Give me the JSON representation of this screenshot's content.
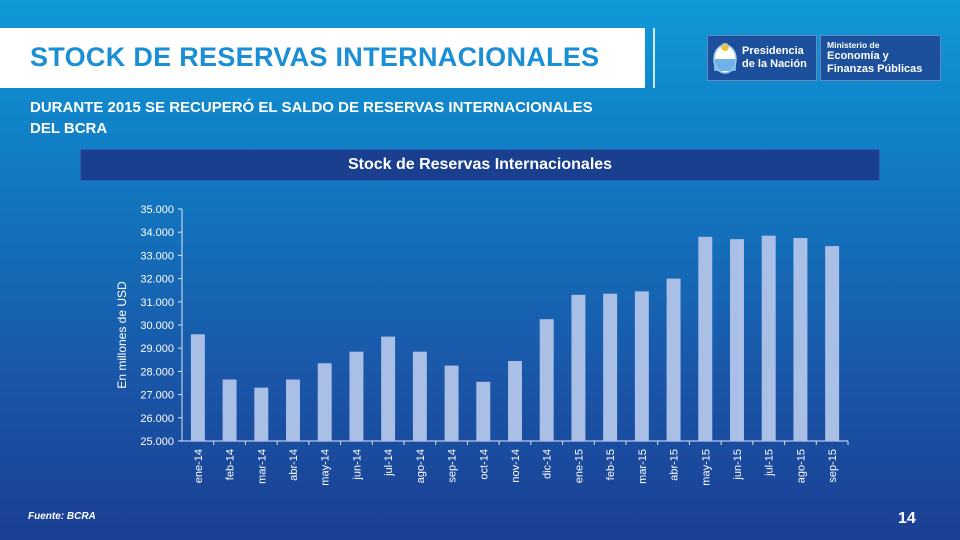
{
  "slide": {
    "title": "STOCK DE RESERVAS  INTERNACIONALES",
    "subtitle_line1": "DURANTE 2015 SE RECUPERÓ EL SALDO DE RESERVAS INTERNACIONALES",
    "subtitle_line2": "DEL BCRA",
    "source": "Fuente:  BCRA",
    "page_number": "14"
  },
  "logos": {
    "presidencia_line1": "Presidencia",
    "presidencia_line2": "de la Nación",
    "ministerio_line1": "Ministerio de",
    "ministerio_line2": "Economía y",
    "ministerio_line3": "Finanzas Públicas"
  },
  "colors": {
    "bar": "#a9bfe6",
    "axis": "#d8e6f5"
  },
  "chart_data": {
    "type": "bar",
    "title": "Stock de Reservas Internacionales",
    "ylabel": "En millones de USD",
    "xlabel": "",
    "ylim": [
      25000,
      35000
    ],
    "yticks": [
      25000,
      26000,
      27000,
      28000,
      29000,
      30000,
      31000,
      32000,
      33000,
      34000,
      35000
    ],
    "ytick_labels": [
      "25.000",
      "26.000",
      "27.000",
      "28.000",
      "29.000",
      "30.000",
      "31.000",
      "32.000",
      "33.000",
      "34.000",
      "35.000"
    ],
    "categories": [
      "ene-14",
      "feb-14",
      "mar-14",
      "abr-14",
      "may-14",
      "jun-14",
      "jul-14",
      "ago-14",
      "sep-14",
      "oct-14",
      "nov-14",
      "dic-14",
      "ene-15",
      "feb-15",
      "mar-15",
      "abr-15",
      "may-15",
      "jun-15",
      "jul-15",
      "ago-15",
      "sep-15"
    ],
    "values": [
      29600,
      27650,
      27300,
      27650,
      28350,
      28850,
      29500,
      28850,
      28250,
      27550,
      28450,
      30250,
      31300,
      31350,
      31450,
      32000,
      33800,
      33700,
      33850,
      33750,
      33400
    ]
  }
}
